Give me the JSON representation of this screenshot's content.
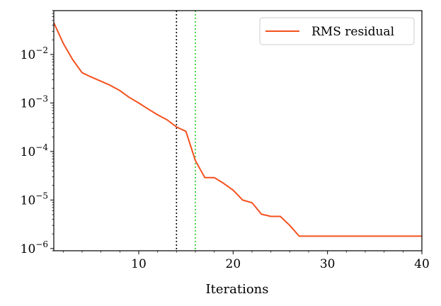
{
  "chart_data": {
    "type": "line",
    "xlabel": "Iterations",
    "ylabel": "",
    "xlim": [
      1,
      40
    ],
    "ylim": [
      9e-07,
      0.08
    ],
    "yscale": "log",
    "xticks": [
      10,
      20,
      30,
      40
    ],
    "xtick_labels": [
      "10",
      "20",
      "30",
      "40"
    ],
    "yticks": [
      1e-06,
      1e-05,
      0.0001,
      0.001,
      0.01
    ],
    "ytick_labels": [
      {
        "base": "10",
        "exp": "−6"
      },
      {
        "base": "10",
        "exp": "−5"
      },
      {
        "base": "10",
        "exp": "−4"
      },
      {
        "base": "10",
        "exp": "−3"
      },
      {
        "base": "10",
        "exp": "−2"
      }
    ],
    "grid": false,
    "legend_position": "top-right",
    "series": [
      {
        "name": "RMS residual",
        "color": "#f4511e",
        "x": [
          1,
          2,
          3,
          4,
          5,
          6,
          7,
          8,
          9,
          10,
          11,
          12,
          13,
          14,
          15,
          16,
          17,
          18,
          19,
          20,
          21,
          22,
          23,
          24,
          25,
          26,
          27,
          28,
          29,
          30,
          31,
          32,
          33,
          34,
          35,
          36,
          37,
          38,
          39,
          40
        ],
        "values": [
          0.045,
          0.017,
          0.0078,
          0.0042,
          0.0034,
          0.0028,
          0.0023,
          0.0018,
          0.0013,
          0.001,
          0.00075,
          0.00057,
          0.00045,
          0.00032,
          0.00026,
          6.5e-05,
          2.9e-05,
          2.9e-05,
          2.2e-05,
          1.6e-05,
          1e-05,
          8.8e-06,
          5.1e-06,
          4.6e-06,
          4.6e-06,
          3e-06,
          1.8e-06,
          1.8e-06,
          1.8e-06,
          1.8e-06,
          1.8e-06,
          1.8e-06,
          1.8e-06,
          1.8e-06,
          1.8e-06,
          1.8e-06,
          1.8e-06,
          1.8e-06,
          1.8e-06,
          1.8e-06
        ]
      }
    ],
    "vlines": [
      {
        "x": 14,
        "color": "#000000",
        "style": "dotted"
      },
      {
        "x": 16,
        "color": "#22cc22",
        "style": "dotted"
      }
    ]
  }
}
